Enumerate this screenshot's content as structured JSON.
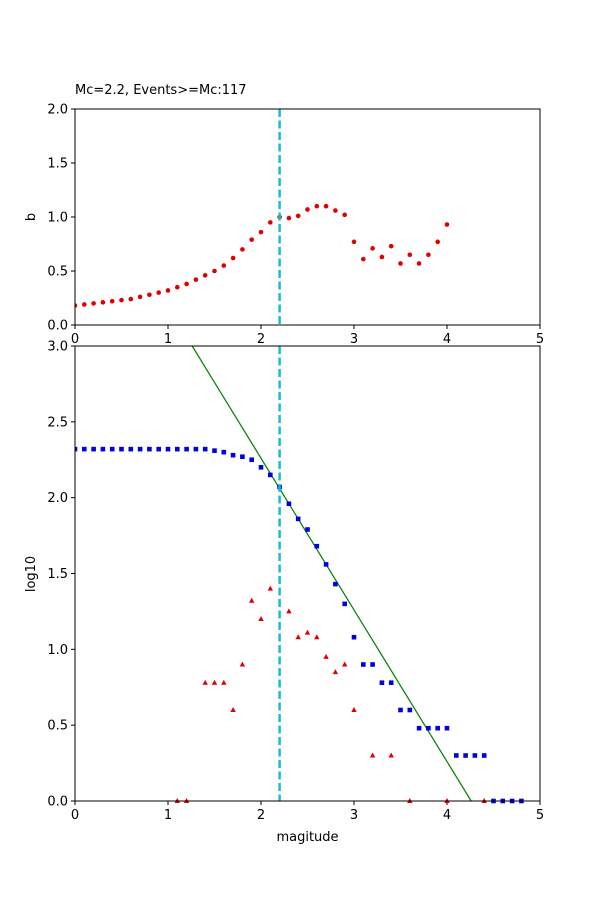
{
  "chart_data": [
    {
      "type": "scatter",
      "title": "Mc=2.2, Events>=Mc:117",
      "xlabel": "",
      "ylabel": "b",
      "xlim": [
        0,
        5
      ],
      "ylim": [
        0,
        2
      ],
      "xticks": [
        "0",
        "1",
        "2",
        "3",
        "4",
        "5"
      ],
      "yticks": [
        "0.0",
        "0.5",
        "1.0",
        "1.5",
        "2.0"
      ],
      "vline": {
        "x": 2.2,
        "color": "#17becf",
        "style": "dashed"
      },
      "series": [
        {
          "color": "#e00000",
          "marker": "circle",
          "points": [
            [
              0.0,
              0.18
            ],
            [
              0.1,
              0.19
            ],
            [
              0.2,
              0.2
            ],
            [
              0.3,
              0.21
            ],
            [
              0.4,
              0.22
            ],
            [
              0.5,
              0.23
            ],
            [
              0.6,
              0.24
            ],
            [
              0.7,
              0.26
            ],
            [
              0.8,
              0.28
            ],
            [
              0.9,
              0.3
            ],
            [
              1.0,
              0.32
            ],
            [
              1.1,
              0.35
            ],
            [
              1.2,
              0.38
            ],
            [
              1.3,
              0.42
            ],
            [
              1.4,
              0.46
            ],
            [
              1.5,
              0.5
            ],
            [
              1.6,
              0.55
            ],
            [
              1.7,
              0.62
            ],
            [
              1.8,
              0.7
            ],
            [
              1.9,
              0.79
            ],
            [
              2.0,
              0.86
            ],
            [
              2.1,
              0.95
            ],
            [
              2.2,
              1.0
            ],
            [
              2.3,
              0.99
            ],
            [
              2.4,
              1.01
            ],
            [
              2.5,
              1.07
            ],
            [
              2.6,
              1.1
            ],
            [
              2.7,
              1.1
            ],
            [
              2.8,
              1.06
            ],
            [
              2.9,
              1.02
            ],
            [
              3.0,
              0.77
            ],
            [
              3.1,
              0.61
            ],
            [
              3.2,
              0.71
            ],
            [
              3.3,
              0.63
            ],
            [
              3.4,
              0.73
            ],
            [
              3.5,
              0.57
            ],
            [
              3.6,
              0.65
            ],
            [
              3.7,
              0.57
            ],
            [
              3.8,
              0.65
            ],
            [
              3.9,
              0.77
            ],
            [
              4.0,
              0.93
            ]
          ]
        }
      ]
    },
    {
      "type": "scatter",
      "title": "",
      "xlabel": "magitude",
      "ylabel": "log10",
      "xlim": [
        0,
        5
      ],
      "ylim": [
        0,
        3
      ],
      "xticks": [
        "0",
        "1",
        "2",
        "3",
        "4",
        "5"
      ],
      "yticks": [
        "0.0",
        "0.5",
        "1.0",
        "1.5",
        "2.0",
        "2.5",
        "3.0"
      ],
      "vline": {
        "x": 2.2,
        "color": "#17becf",
        "style": "dashed"
      },
      "fit_line": {
        "color": "#008000",
        "points": [
          [
            1.26,
            3.0
          ],
          [
            4.26,
            0.0
          ]
        ]
      },
      "series": [
        {
          "color": "#0000e0",
          "marker": "square",
          "points": [
            [
              0.0,
              2.32
            ],
            [
              0.1,
              2.32
            ],
            [
              0.2,
              2.32
            ],
            [
              0.3,
              2.32
            ],
            [
              0.4,
              2.32
            ],
            [
              0.5,
              2.32
            ],
            [
              0.6,
              2.32
            ],
            [
              0.7,
              2.32
            ],
            [
              0.8,
              2.32
            ],
            [
              0.9,
              2.32
            ],
            [
              1.0,
              2.32
            ],
            [
              1.1,
              2.32
            ],
            [
              1.2,
              2.32
            ],
            [
              1.3,
              2.32
            ],
            [
              1.4,
              2.32
            ],
            [
              1.5,
              2.31
            ],
            [
              1.6,
              2.3
            ],
            [
              1.7,
              2.28
            ],
            [
              1.8,
              2.27
            ],
            [
              1.9,
              2.25
            ],
            [
              2.0,
              2.2
            ],
            [
              2.1,
              2.15
            ],
            [
              2.2,
              2.07
            ],
            [
              2.3,
              1.96
            ],
            [
              2.4,
              1.86
            ],
            [
              2.5,
              1.79
            ],
            [
              2.6,
              1.68
            ],
            [
              2.7,
              1.56
            ],
            [
              2.8,
              1.43
            ],
            [
              2.9,
              1.3
            ],
            [
              3.0,
              1.08
            ],
            [
              3.1,
              0.9
            ],
            [
              3.2,
              0.9
            ],
            [
              3.3,
              0.78
            ],
            [
              3.4,
              0.78
            ],
            [
              3.5,
              0.6
            ],
            [
              3.6,
              0.6
            ],
            [
              3.7,
              0.48
            ],
            [
              3.8,
              0.48
            ],
            [
              3.9,
              0.48
            ],
            [
              4.0,
              0.48
            ],
            [
              4.1,
              0.3
            ],
            [
              4.2,
              0.3
            ],
            [
              4.3,
              0.3
            ],
            [
              4.4,
              0.3
            ],
            [
              4.5,
              0.0
            ],
            [
              4.6,
              0.0
            ],
            [
              4.7,
              0.0
            ],
            [
              4.8,
              0.0
            ]
          ]
        },
        {
          "color": "#e00000",
          "marker": "triangle",
          "points": [
            [
              1.1,
              0.0
            ],
            [
              1.2,
              0.0
            ],
            [
              1.4,
              0.78
            ],
            [
              1.5,
              0.78
            ],
            [
              1.6,
              0.78
            ],
            [
              1.7,
              0.6
            ],
            [
              1.8,
              0.9
            ],
            [
              1.9,
              1.32
            ],
            [
              2.0,
              1.2
            ],
            [
              2.1,
              1.4
            ],
            [
              2.3,
              1.25
            ],
            [
              2.4,
              1.08
            ],
            [
              2.5,
              1.11
            ],
            [
              2.6,
              1.08
            ],
            [
              2.7,
              0.95
            ],
            [
              2.8,
              0.85
            ],
            [
              2.9,
              0.9
            ],
            [
              3.0,
              0.6
            ],
            [
              3.2,
              0.3
            ],
            [
              3.4,
              0.3
            ],
            [
              3.6,
              0.0
            ],
            [
              4.0,
              0.0
            ],
            [
              4.4,
              0.0
            ]
          ]
        }
      ]
    }
  ]
}
